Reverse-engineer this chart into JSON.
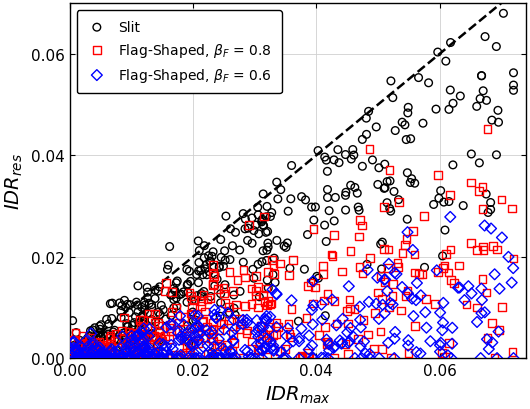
{
  "xlabel": "$IDR_{max}$",
  "ylabel": "$IDR_{res}$",
  "xlim": [
    0,
    0.074
  ],
  "ylim": [
    0,
    0.07
  ],
  "xticks": [
    0,
    0.02,
    0.04,
    0.06
  ],
  "yticks": [
    0,
    0.02,
    0.04,
    0.06
  ],
  "series": [
    {
      "label": "Slit",
      "color": "black",
      "marker": "o",
      "markersize": 5.5,
      "linewidth": 1.0,
      "seed": 11,
      "n": 400,
      "ratio_mean": 0.72,
      "ratio_std": 0.18,
      "noise_std": 0.003
    },
    {
      "label": "Flag-Shaped, $\\beta_F$ = 0.8",
      "color": "red",
      "marker": "s",
      "markersize": 5.5,
      "linewidth": 1.0,
      "seed": 22,
      "n": 400,
      "ratio_mean": 0.28,
      "ratio_std": 0.2,
      "noise_std": 0.002
    },
    {
      "label": "Flag-Shaped, $\\beta_F$ = 0.6",
      "color": "blue",
      "marker": "D",
      "markersize": 5.5,
      "linewidth": 1.0,
      "seed": 33,
      "n": 400,
      "ratio_mean": 0.12,
      "ratio_std": 0.14,
      "noise_std": 0.002
    }
  ],
  "legend_fontsize": 10,
  "tick_fontsize": 11,
  "label_fontsize": 14,
  "figsize": [
    5.3,
    4.1
  ],
  "dpi": 100
}
